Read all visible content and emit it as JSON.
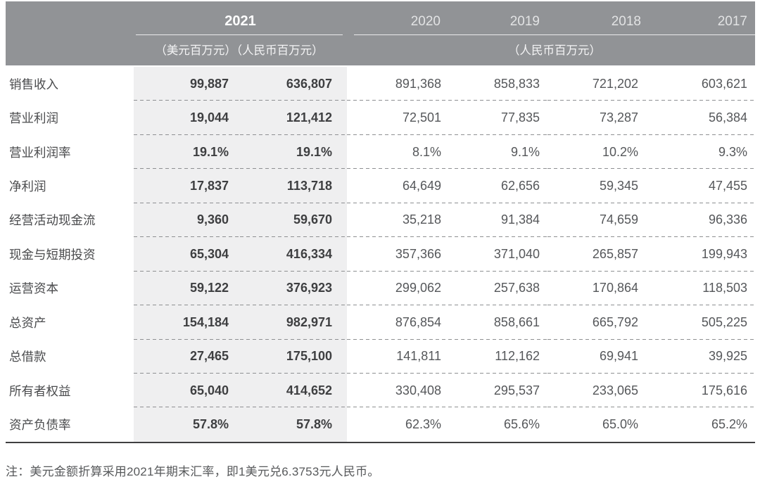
{
  "table": {
    "header": {
      "year_current": "2021",
      "unit_usd_rmb": "（美元百万元）（人民币百万元）",
      "unit_rmb": "（人民币百万元）",
      "years_prior": [
        "2020",
        "2019",
        "2018",
        "2017"
      ]
    },
    "rows": [
      {
        "label": "销售收入",
        "usd_2021": "99,887",
        "rmb_2021": "636,807",
        "y2020": "891,368",
        "y2019": "858,833",
        "y2018": "721,202",
        "y2017": "603,621"
      },
      {
        "label": "营业利润",
        "usd_2021": "19,044",
        "rmb_2021": "121,412",
        "y2020": "72,501",
        "y2019": "77,835",
        "y2018": "73,287",
        "y2017": "56,384"
      },
      {
        "label": "营业利润率",
        "usd_2021": "19.1%",
        "rmb_2021": "19.1%",
        "y2020": "8.1%",
        "y2019": "9.1%",
        "y2018": "10.2%",
        "y2017": "9.3%"
      },
      {
        "label": "净利润",
        "usd_2021": "17,837",
        "rmb_2021": "113,718",
        "y2020": "64,649",
        "y2019": "62,656",
        "y2018": "59,345",
        "y2017": "47,455"
      },
      {
        "label": "经营活动现金流",
        "usd_2021": "9,360",
        "rmb_2021": "59,670",
        "y2020": "35,218",
        "y2019": "91,384",
        "y2018": "74,659",
        "y2017": "96,336"
      },
      {
        "label": "现金与短期投资",
        "usd_2021": "65,304",
        "rmb_2021": "416,334",
        "y2020": "357,366",
        "y2019": "371,040",
        "y2018": "265,857",
        "y2017": "199,943"
      },
      {
        "label": "运营资本",
        "usd_2021": "59,122",
        "rmb_2021": "376,923",
        "y2020": "299,062",
        "y2019": "257,638",
        "y2018": "170,864",
        "y2017": "118,503"
      },
      {
        "label": "总资产",
        "usd_2021": "154,184",
        "rmb_2021": "982,971",
        "y2020": "876,854",
        "y2019": "858,661",
        "y2018": "665,792",
        "y2017": "505,225"
      },
      {
        "label": "总借款",
        "usd_2021": "27,465",
        "rmb_2021": "175,100",
        "y2020": "141,811",
        "y2019": "112,162",
        "y2018": "69,941",
        "y2017": "39,925"
      },
      {
        "label": "所有者权益",
        "usd_2021": "65,040",
        "rmb_2021": "414,652",
        "y2020": "330,408",
        "y2019": "295,537",
        "y2018": "233,065",
        "y2017": "175,616"
      },
      {
        "label": "资产负债率",
        "usd_2021": "57.8%",
        "rmb_2021": "57.8%",
        "y2020": "62.3%",
        "y2019": "65.6%",
        "y2018": "65.0%",
        "y2017": "65.2%"
      }
    ],
    "note": "注：美元金额折算采用2021年期末汇率，即1美元兑6.3753元人民币。",
    "colors": {
      "header_band": "#919396",
      "highlight_column_bg": "#efeff0",
      "bold_value_text": "#3e3f41",
      "regular_value_text": "#55575a",
      "bottom_border": "#3f3f41"
    }
  }
}
